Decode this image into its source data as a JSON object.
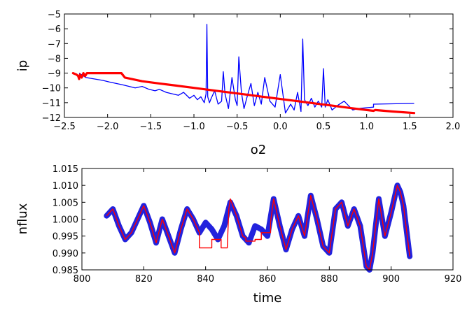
{
  "chart_data": [
    {
      "type": "line",
      "title": "",
      "xlabel": "o2",
      "ylabel": "ip",
      "xlim": [
        -2.5,
        2.0
      ],
      "ylim": [
        -12,
        -5
      ],
      "xticks": [
        "−2.5",
        "−2.0",
        "−1.5",
        "−1.0",
        "−0.5",
        "0.0",
        "0.5",
        "1.0",
        "1.5",
        "2.0"
      ],
      "xtick_values": [
        -2.5,
        -2.0,
        -1.5,
        -1.0,
        -0.5,
        0.0,
        0.5,
        1.0,
        1.5,
        2.0
      ],
      "yticks": [
        "−12",
        "−11",
        "−10",
        "−9",
        "−8",
        "−7",
        "−6",
        "−5"
      ],
      "ytick_values": [
        -12,
        -11,
        -10,
        -9,
        -8,
        -7,
        -6,
        -5
      ],
      "grid": false,
      "series": [
        {
          "color": "#0000ff",
          "x": [
            -2.33,
            -2.25,
            -2.15,
            -2.05,
            -1.98,
            -1.9,
            -1.82,
            -1.75,
            -1.68,
            -1.6,
            -1.52,
            -1.45,
            -1.4,
            -1.32,
            -1.25,
            -1.18,
            -1.12,
            -1.05,
            -1.0,
            -0.96,
            -0.92,
            -0.88,
            -0.86,
            -0.85,
            -0.84,
            -0.82,
            -0.8,
            -0.76,
            -0.72,
            -0.68,
            -0.66,
            -0.64,
            -0.6,
            -0.56,
            -0.52,
            -0.5,
            -0.48,
            -0.45,
            -0.42,
            -0.38,
            -0.34,
            -0.3,
            -0.26,
            -0.22,
            -0.18,
            -0.12,
            -0.06,
            0.0,
            0.06,
            0.12,
            0.16,
            0.2,
            0.24,
            0.26,
            0.28,
            0.32,
            0.36,
            0.4,
            0.44,
            0.48,
            0.5,
            0.52,
            0.55,
            0.6,
            0.66,
            0.74,
            0.84,
            0.9,
            1.08,
            1.08,
            1.55
          ],
          "y": [
            -9.0,
            -9.3,
            -9.4,
            -9.5,
            -9.6,
            -9.7,
            -9.8,
            -9.9,
            -10.0,
            -9.9,
            -10.1,
            -10.2,
            -10.1,
            -10.3,
            -10.4,
            -10.5,
            -10.3,
            -10.7,
            -10.5,
            -10.8,
            -10.6,
            -11.0,
            -10.4,
            -5.7,
            -10.6,
            -11.0,
            -10.7,
            -10.2,
            -11.1,
            -10.9,
            -8.9,
            -10.4,
            -11.4,
            -9.3,
            -10.8,
            -11.2,
            -7.9,
            -10.3,
            -11.4,
            -10.5,
            -9.7,
            -11.2,
            -10.3,
            -11.1,
            -9.3,
            -10.9,
            -11.3,
            -9.1,
            -11.7,
            -11.1,
            -11.5,
            -10.3,
            -11.6,
            -6.7,
            -10.8,
            -11.2,
            -10.7,
            -11.3,
            -10.9,
            -11.3,
            -8.7,
            -11.3,
            -10.8,
            -11.5,
            -11.2,
            -10.9,
            -11.5,
            -11.4,
            -11.3,
            -11.1,
            -11.05
          ]
        },
        {
          "color": "#ff0000",
          "x": [
            -2.4,
            -2.36,
            -2.34,
            -2.33,
            -2.32,
            -2.3,
            -2.28,
            -2.26,
            -2.24,
            -2.2,
            -2.1,
            -1.9,
            -1.84,
            -1.8,
            -1.6,
            -1.4,
            -1.2,
            -1.0,
            -0.8,
            -0.6,
            -0.4,
            -0.2,
            0.0,
            0.2,
            0.4,
            0.6,
            0.8,
            1.0,
            1.08,
            1.1,
            1.3,
            1.55
          ],
          "y": [
            -9.0,
            -9.1,
            -9.2,
            -9.4,
            -9.1,
            -9.3,
            -9.0,
            -9.2,
            -9.0,
            -9.0,
            -9.0,
            -9.0,
            -9.0,
            -9.3,
            -9.55,
            -9.7,
            -9.85,
            -10.0,
            -10.15,
            -10.3,
            -10.45,
            -10.6,
            -10.75,
            -10.9,
            -11.05,
            -11.2,
            -11.35,
            -11.5,
            -11.55,
            -11.5,
            -11.6,
            -11.7
          ]
        }
      ]
    },
    {
      "type": "line",
      "title": "",
      "xlabel": "time",
      "ylabel": "nflux",
      "xlim": [
        800,
        920
      ],
      "ylim": [
        0.985,
        1.015
      ],
      "xticks": [
        "800",
        "820",
        "840",
        "860",
        "880",
        "900",
        "920"
      ],
      "xtick_values": [
        800,
        820,
        840,
        860,
        880,
        900,
        920
      ],
      "yticks": [
        "0.985",
        "0.990",
        "0.995",
        "1.000",
        "1.005",
        "1.010",
        "1.015"
      ],
      "ytick_values": [
        0.985,
        0.99,
        0.995,
        1.0,
        1.005,
        1.01,
        1.015
      ],
      "grid": false,
      "series": [
        {
          "color": "#2222dd",
          "x": [
            808,
            810,
            812,
            814,
            816,
            818,
            820,
            822,
            824,
            826,
            828,
            830,
            832,
            834,
            836,
            838,
            840,
            842,
            844,
            846,
            848,
            850,
            852,
            854,
            856,
            858,
            860,
            862,
            864,
            866,
            868,
            870,
            872,
            874,
            876,
            878,
            880,
            882,
            884,
            886,
            888,
            890,
            892,
            893,
            894,
            896,
            898,
            900,
            902,
            903,
            904,
            906
          ],
          "y": [
            1.001,
            1.003,
            0.998,
            0.994,
            0.996,
            1.0,
            1.004,
            0.999,
            0.993,
            1.0,
            0.995,
            0.99,
            0.997,
            1.003,
            1.0,
            0.996,
            0.999,
            0.997,
            0.994,
            0.998,
            1.005,
            1.001,
            0.995,
            0.993,
            0.998,
            0.997,
            0.995,
            1.006,
            0.998,
            0.991,
            0.997,
            1.001,
            0.995,
            1.007,
            1.0,
            0.992,
            0.99,
            1.003,
            1.005,
            0.998,
            1.003,
            0.998,
            0.986,
            0.985,
            0.99,
            1.006,
            0.995,
            1.002,
            1.01,
            1.008,
            1.004,
            0.989
          ]
        },
        {
          "color": "#ff0000",
          "x": [
            808,
            810,
            812,
            814,
            816,
            818,
            820,
            822,
            824,
            826,
            828,
            830,
            832,
            834,
            836,
            838,
            838,
            842,
            842,
            845,
            845,
            847,
            847.5,
            848,
            850,
            852,
            853,
            853,
            856,
            856,
            858,
            858,
            861,
            861,
            862,
            864,
            866,
            868,
            870,
            872,
            874,
            876,
            878,
            880,
            882,
            884,
            886,
            888,
            890,
            892,
            893,
            894,
            896,
            898,
            900,
            902,
            903,
            904,
            906
          ],
          "y": [
            1.001,
            1.003,
            0.998,
            0.994,
            0.996,
            1.0,
            1.004,
            0.999,
            0.993,
            1.0,
            0.995,
            0.99,
            0.997,
            1.003,
            1.0,
            0.996,
            0.9915,
            0.9915,
            0.994,
            0.994,
            0.9915,
            0.9915,
            1.003,
            1.006,
            1.001,
            0.995,
            0.9945,
            0.9935,
            0.9935,
            0.994,
            0.994,
            0.996,
            0.996,
            0.999,
            1.006,
            0.998,
            0.991,
            0.997,
            1.001,
            0.995,
            1.007,
            1.0,
            0.992,
            0.99,
            1.003,
            1.005,
            0.998,
            1.003,
            0.998,
            0.986,
            0.985,
            0.99,
            1.006,
            0.995,
            1.002,
            1.01,
            1.008,
            1.004,
            0.989
          ]
        }
      ]
    }
  ]
}
